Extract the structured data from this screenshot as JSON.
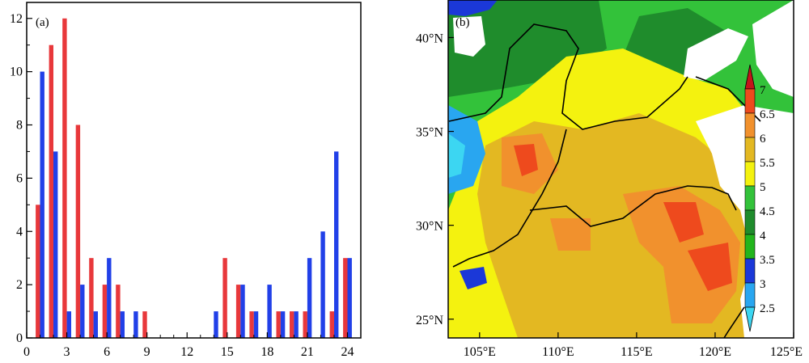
{
  "chart_data": [
    {
      "type": "bar",
      "panel_label": "(a)",
      "x": [
        1,
        2,
        3,
        4,
        5,
        6,
        7,
        8,
        9,
        10,
        11,
        12,
        13,
        14,
        15,
        16,
        17,
        18,
        19,
        20,
        21,
        22,
        23,
        24
      ],
      "xticks": [
        "0",
        "3",
        "6",
        "9",
        "12",
        "15",
        "18",
        "21",
        "24"
      ],
      "yticks": [
        "0",
        "2",
        "4",
        "6",
        "8",
        "10",
        "12"
      ],
      "xlim": [
        0,
        25
      ],
      "ylim": [
        0,
        12.6
      ],
      "series": [
        {
          "color": "#e8383b",
          "values": [
            5,
            11,
            12,
            8,
            3,
            2,
            2,
            0,
            1,
            0,
            0,
            0,
            0,
            0,
            3,
            2,
            1,
            0,
            1,
            1,
            1,
            0,
            1,
            3
          ]
        },
        {
          "color": "#2140e8",
          "values": [
            10,
            7,
            1,
            2,
            1,
            3,
            1,
            1,
            0,
            0,
            0,
            0,
            0,
            1,
            0,
            2,
            1,
            2,
            1,
            1,
            3,
            4,
            7,
            3
          ]
        }
      ]
    },
    {
      "type": "heatmap",
      "panel_label": "(b)",
      "xticks": [
        "105°E",
        "110°E",
        "115°E",
        "120°E",
        "125°E"
      ],
      "yticks": [
        "25°N",
        "30°N",
        "35°N",
        "40°N"
      ],
      "x_ticks_values": [
        105,
        110,
        115,
        120,
        125
      ],
      "y_ticks_values": [
        25,
        30,
        35,
        40
      ],
      "xlim": [
        103,
        125
      ],
      "ylim": [
        24,
        42
      ],
      "colorbar": {
        "labels": [
          "2.5",
          "3",
          "3.5",
          "4",
          "4.5",
          "5",
          "5.5",
          "6",
          "6.5",
          "7"
        ],
        "levels": [
          2.5,
          3,
          3.5,
          4,
          4.5,
          5,
          5.5,
          6,
          6.5,
          7
        ],
        "colors": [
          "#3cd6f2",
          "#29a6f0",
          "#1b38d8",
          "#22b51c",
          "#1f8c2c",
          "#33c23a",
          "#f4f20f",
          "#e3b822",
          "#f1912d",
          "#ee4a1d",
          "#c4141a"
        ]
      }
    }
  ]
}
